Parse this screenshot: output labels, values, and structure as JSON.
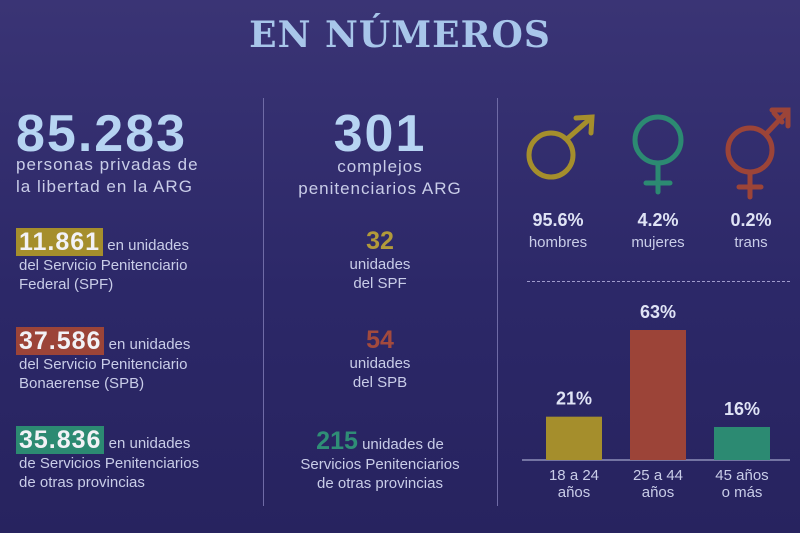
{
  "title": "EN NÚMEROS",
  "total": {
    "number": "85.283",
    "line1": "personas privadas de",
    "line2": "la libertad en la ARG"
  },
  "breakdown": [
    {
      "number": "11.861",
      "color": "#a58e2c",
      "suffix": "en unidades",
      "line2": "del Servicio Penitenciario",
      "line3": "Federal (SPF)"
    },
    {
      "number": "37.586",
      "color": "#9c4438",
      "suffix": "en unidades",
      "line2": "del Servicio Penitenciario",
      "line3": "Bonaerense (SPB)"
    },
    {
      "number": "35.836",
      "color": "#2c8a72",
      "suffix": "en unidades",
      "line2": "de Servicios Penitenciarios",
      "line3": "de otras provincias"
    }
  ],
  "complexes": {
    "number": "301",
    "line1": "complejos",
    "line2": "penitenciarios ARG"
  },
  "units": [
    {
      "number": "32",
      "color": "#b29a3a",
      "line1": "unidades",
      "line2": "del SPF"
    },
    {
      "number": "54",
      "color": "#a24a3d",
      "line1": "unidades",
      "line2": "del SPB"
    },
    {
      "number": "215",
      "color": "#2f8e76",
      "suffix": "unidades de",
      "line1": "Servicios Penitenciarios",
      "line2": "de otras provincias"
    }
  ],
  "gender": [
    {
      "icon": "male-icon",
      "color": "#a58e2c",
      "pct": "95.6%",
      "label": "hombres"
    },
    {
      "icon": "female-icon",
      "color": "#2c8a72",
      "pct": "4.2%",
      "label": "mujeres"
    },
    {
      "icon": "transgender-icon",
      "color": "#9c4438",
      "pct": "0.2%",
      "label": "trans"
    }
  ],
  "chart_data": {
    "type": "bar",
    "categories": [
      "18 a 24 años",
      "25 a 44 años",
      "45 años o más"
    ],
    "category_lines": [
      [
        "18 a 24",
        "años"
      ],
      [
        "25 a 44",
        "años"
      ],
      [
        "45 años",
        "o más"
      ]
    ],
    "values": [
      21,
      63,
      16
    ],
    "value_labels": [
      "21%",
      "63%",
      "16%"
    ],
    "colors": [
      "#a58e2c",
      "#9c4438",
      "#2c8a72"
    ],
    "ylim": [
      0,
      63
    ],
    "grid": false,
    "legend": "none"
  }
}
